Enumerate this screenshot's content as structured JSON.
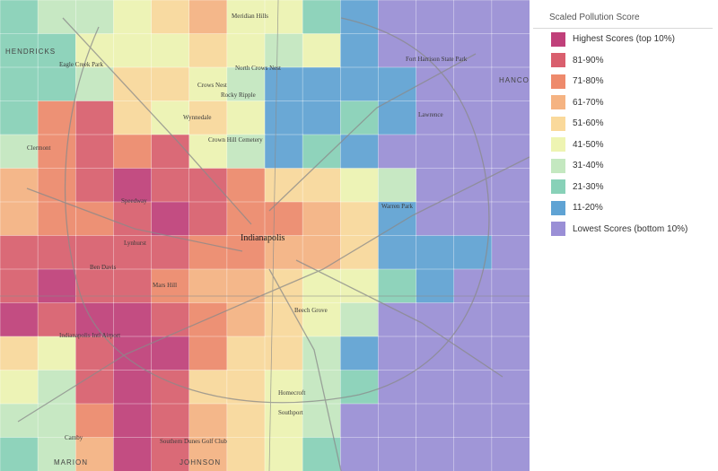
{
  "legend": {
    "title": "Scaled Pollution Score",
    "items": [
      {
        "label": "Highest Scores (top 10%)",
        "color": "#c0407a"
      },
      {
        "label": "81-90%",
        "color": "#d95f6e"
      },
      {
        "label": "71-80%",
        "color": "#ee8a6c"
      },
      {
        "label": "61-70%",
        "color": "#f5b382"
      },
      {
        "label": "51-60%",
        "color": "#fad99b"
      },
      {
        "label": "41-50%",
        "color": "#eef4b2"
      },
      {
        "label": "31-40%",
        "color": "#c4e8c0"
      },
      {
        "label": "21-30%",
        "color": "#88d1b8"
      },
      {
        "label": "11-20%",
        "color": "#5fa3d4"
      },
      {
        "label": "Lowest Scores (bottom 10%)",
        "color": "#9a8fd6"
      }
    ]
  },
  "map_labels": {
    "city": "Indianapolis",
    "places": [
      "Meridian Hills",
      "Crows Nest",
      "North Crows Nest",
      "Rocky Ripple",
      "Wynnedale",
      "Crown Hill Cemetery",
      "Speedway",
      "Lynhurst",
      "Lawrence",
      "Warren Park",
      "Beech Grove",
      "Homecroft",
      "Southport",
      "Indianapolis Intl Airport",
      "Southern Dunes Golf Club",
      "Camby",
      "Clermont",
      "Eagle Creek Park",
      "Fort Harrison State Park",
      "Ben Davis",
      "Mars Hill"
    ],
    "edges": [
      "HENDRICKS",
      "MARION",
      "HANCOCK",
      "JOHNSON"
    ]
  }
}
